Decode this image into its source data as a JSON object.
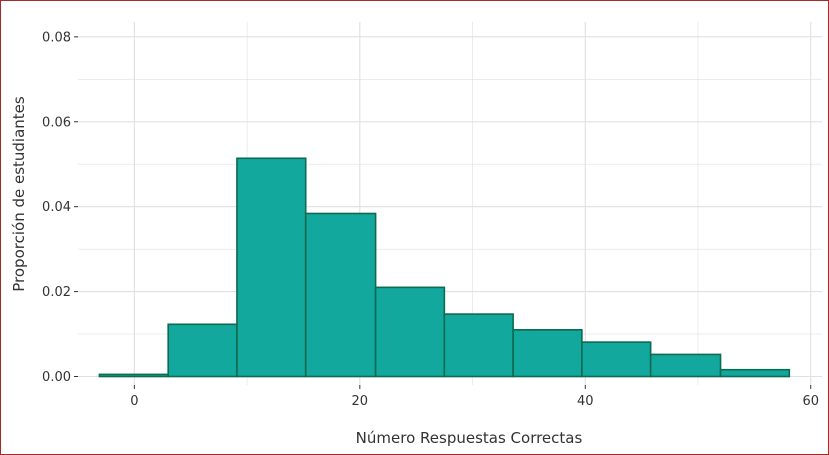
{
  "chart_data": {
    "type": "bar",
    "subtype": "histogram",
    "xlabel": "Número Respuestas Correctas",
    "ylabel": "Proporción de estudiantes",
    "xlim": [
      -5,
      61
    ],
    "ylim": [
      -0.002,
      0.0835
    ],
    "x_ticks": [
      0,
      20,
      40,
      60
    ],
    "x_tick_labels": [
      "0",
      "20",
      "40",
      "60"
    ],
    "y_ticks": [
      0.0,
      0.02,
      0.04,
      0.06,
      0.08
    ],
    "y_tick_labels": [
      "0.00",
      "0.02",
      "0.04",
      "0.06",
      "0.08"
    ],
    "grid": true,
    "colors": {
      "fill": "#13a89e",
      "edge": "#0d6b4f",
      "grid": "#e0e0e0",
      "border": "#a52a2a"
    },
    "bins": [
      {
        "start": -3.1,
        "end": 3.0,
        "value": 0.0005
      },
      {
        "start": 3.0,
        "end": 9.1,
        "value": 0.0123
      },
      {
        "start": 9.1,
        "end": 15.2,
        "value": 0.0514
      },
      {
        "start": 15.2,
        "end": 21.4,
        "value": 0.0384
      },
      {
        "start": 21.4,
        "end": 27.5,
        "value": 0.021
      },
      {
        "start": 27.5,
        "end": 33.6,
        "value": 0.0147
      },
      {
        "start": 33.6,
        "end": 39.7,
        "value": 0.011
      },
      {
        "start": 39.7,
        "end": 45.8,
        "value": 0.0081
      },
      {
        "start": 45.8,
        "end": 52.0,
        "value": 0.0052
      },
      {
        "start": 52.0,
        "end": 58.1,
        "value": 0.0016
      }
    ]
  }
}
